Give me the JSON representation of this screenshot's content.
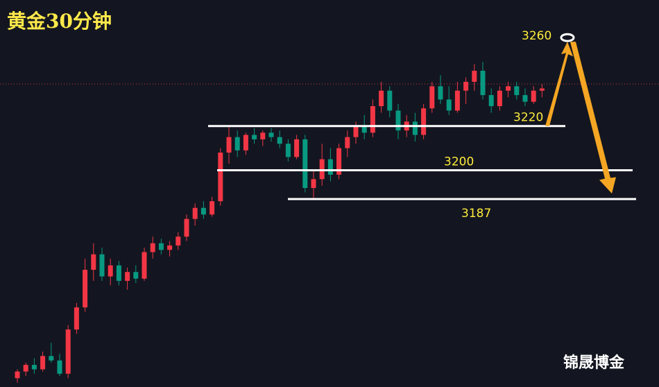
{
  "chart_data": {
    "type": "candlestick",
    "title": "黄金30分钟",
    "watermark": "锦晟博金",
    "ylim": [
      3102,
      3277
    ],
    "up_color": "#f23645",
    "down_color": "#089981",
    "price_line": 3239,
    "levels": [
      3220,
      3200,
      3187
    ],
    "target": 3260,
    "candles": [
      [
        3106,
        3110,
        3104,
        3109
      ],
      [
        3109,
        3113,
        3107,
        3112
      ],
      [
        3112,
        3115,
        3108,
        3110
      ],
      [
        3110,
        3118,
        3109,
        3116
      ],
      [
        3116,
        3122,
        3113,
        3114
      ],
      [
        3114,
        3117,
        3107,
        3108
      ],
      [
        3108,
        3130,
        3106,
        3128
      ],
      [
        3128,
        3140,
        3126,
        3138
      ],
      [
        3138,
        3160,
        3136,
        3155
      ],
      [
        3155,
        3167,
        3150,
        3162
      ],
      [
        3162,
        3165,
        3150,
        3152
      ],
      [
        3152,
        3160,
        3148,
        3157
      ],
      [
        3157,
        3159,
        3148,
        3150
      ],
      [
        3150,
        3156,
        3146,
        3154
      ],
      [
        3154,
        3157,
        3149,
        3151
      ],
      [
        3151,
        3165,
        3150,
        3163
      ],
      [
        3163,
        3170,
        3160,
        3167
      ],
      [
        3167,
        3169,
        3162,
        3164
      ],
      [
        3164,
        3168,
        3161,
        3166
      ],
      [
        3166,
        3172,
        3164,
        3170
      ],
      [
        3170,
        3180,
        3168,
        3178
      ],
      [
        3178,
        3185,
        3175,
        3183
      ],
      [
        3183,
        3186,
        3178,
        3180
      ],
      [
        3180,
        3188,
        3179,
        3186
      ],
      [
        3186,
        3210,
        3184,
        3208
      ],
      [
        3208,
        3220,
        3203,
        3215
      ],
      [
        3215,
        3218,
        3206,
        3209
      ],
      [
        3209,
        3217,
        3207,
        3216
      ],
      [
        3216,
        3219,
        3212,
        3214
      ],
      [
        3214,
        3218,
        3211,
        3217
      ],
      [
        3217,
        3219,
        3213,
        3215
      ],
      [
        3215,
        3218,
        3210,
        3212
      ],
      [
        3212,
        3214,
        3204,
        3206
      ],
      [
        3206,
        3216,
        3205,
        3214
      ],
      [
        3214,
        3216,
        3190,
        3192
      ],
      [
        3192,
        3200,
        3187,
        3196
      ],
      [
        3196,
        3212,
        3193,
        3205
      ],
      [
        3205,
        3210,
        3195,
        3198
      ],
      [
        3198,
        3212,
        3196,
        3210
      ],
      [
        3210,
        3218,
        3206,
        3215
      ],
      [
        3215,
        3222,
        3212,
        3220
      ],
      [
        3220,
        3225,
        3214,
        3217
      ],
      [
        3217,
        3232,
        3215,
        3229
      ],
      [
        3229,
        3240,
        3226,
        3236
      ],
      [
        3236,
        3238,
        3224,
        3227
      ],
      [
        3227,
        3230,
        3214,
        3218
      ],
      [
        3218,
        3225,
        3215,
        3222
      ],
      [
        3222,
        3226,
        3213,
        3216
      ],
      [
        3216,
        3230,
        3214,
        3228
      ],
      [
        3228,
        3240,
        3226,
        3238
      ],
      [
        3238,
        3243,
        3230,
        3232
      ],
      [
        3232,
        3238,
        3225,
        3227
      ],
      [
        3227,
        3240,
        3226,
        3236
      ],
      [
        3236,
        3242,
        3230,
        3240
      ],
      [
        3240,
        3248,
        3236,
        3245
      ],
      [
        3245,
        3249,
        3232,
        3234
      ],
      [
        3234,
        3237,
        3226,
        3229
      ],
      [
        3229,
        3238,
        3227,
        3236
      ],
      [
        3236,
        3240,
        3233,
        3238
      ],
      [
        3238,
        3240,
        3232,
        3234
      ],
      [
        3234,
        3237,
        3229,
        3231
      ],
      [
        3231,
        3238,
        3230,
        3236
      ],
      [
        3236,
        3239,
        3233,
        3237
      ]
    ]
  }
}
